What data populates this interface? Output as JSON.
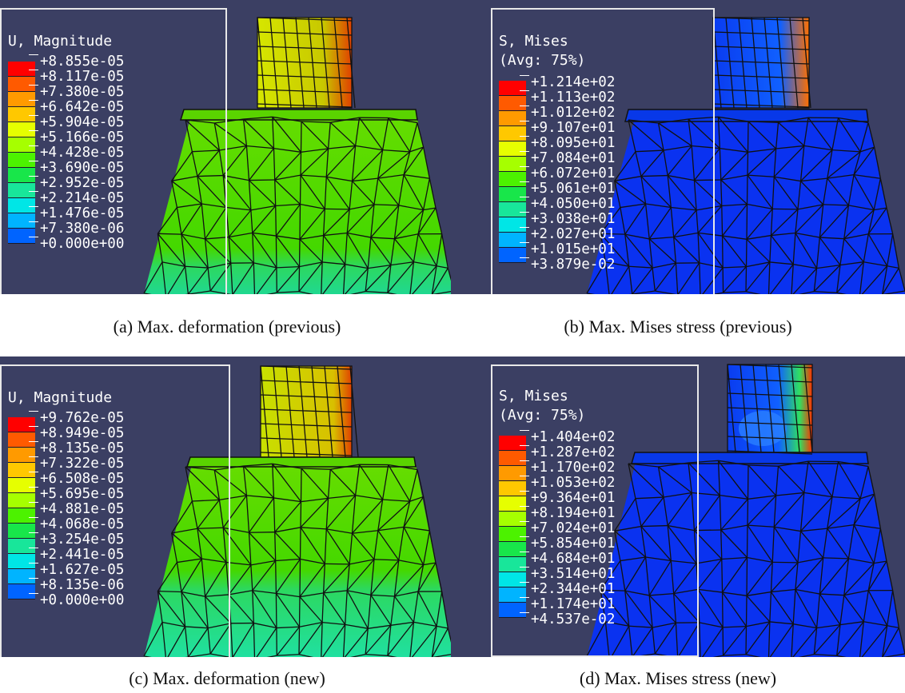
{
  "panels": [
    {
      "legend_title": "U, Magnitude",
      "legend_values": [
        "+8.855e-05",
        "+8.117e-05",
        "+7.380e-05",
        "+6.642e-05",
        "+5.904e-05",
        "+5.166e-05",
        "+4.428e-05",
        "+3.690e-05",
        "+2.952e-05",
        "+2.214e-05",
        "+1.476e-05",
        "+7.380e-06",
        "+0.000e+00"
      ],
      "caption": "(a) Max. deformation (previous)"
    },
    {
      "legend_title": "S, Mises\n(Avg: 75%)",
      "legend_values": [
        "+1.214e+02",
        "+1.113e+02",
        "+1.012e+02",
        "+9.107e+01",
        "+8.095e+01",
        "+7.084e+01",
        "+6.072e+01",
        "+5.061e+01",
        "+4.050e+01",
        "+3.038e+01",
        "+2.027e+01",
        "+1.015e+01",
        "+3.879e-02"
      ],
      "caption": "(b) Max. Mises stress (previous)"
    },
    {
      "legend_title": "U, Magnitude",
      "legend_values": [
        "+9.762e-05",
        "+8.949e-05",
        "+8.135e-05",
        "+7.322e-05",
        "+6.508e-05",
        "+5.695e-05",
        "+4.881e-05",
        "+4.068e-05",
        "+3.254e-05",
        "+2.441e-05",
        "+1.627e-05",
        "+8.135e-06",
        "+0.000e+00"
      ],
      "caption": "(c) Max. deformation (new)"
    },
    {
      "legend_title": "S, Mises\n(Avg: 75%)",
      "legend_values": [
        "+1.404e+02",
        "+1.287e+02",
        "+1.170e+02",
        "+1.053e+02",
        "+9.364e+01",
        "+8.194e+01",
        "+7.024e+01",
        "+5.854e+01",
        "+4.684e+01",
        "+3.514e+01",
        "+2.344e+01",
        "+1.174e+01",
        "+4.537e-02"
      ],
      "caption": "(d) Max. Mises stress (new)"
    }
  ],
  "colors": {
    "background": "#3b3f63",
    "contour_scale": [
      "#ff0000",
      "#ff5a00",
      "#ff9a00",
      "#ffc800",
      "#e6ff00",
      "#a6ff00",
      "#4cf200",
      "#18e64a",
      "#18e69a",
      "#00e6e6",
      "#00b4ff",
      "#0064ff",
      "#0000ff"
    ]
  }
}
